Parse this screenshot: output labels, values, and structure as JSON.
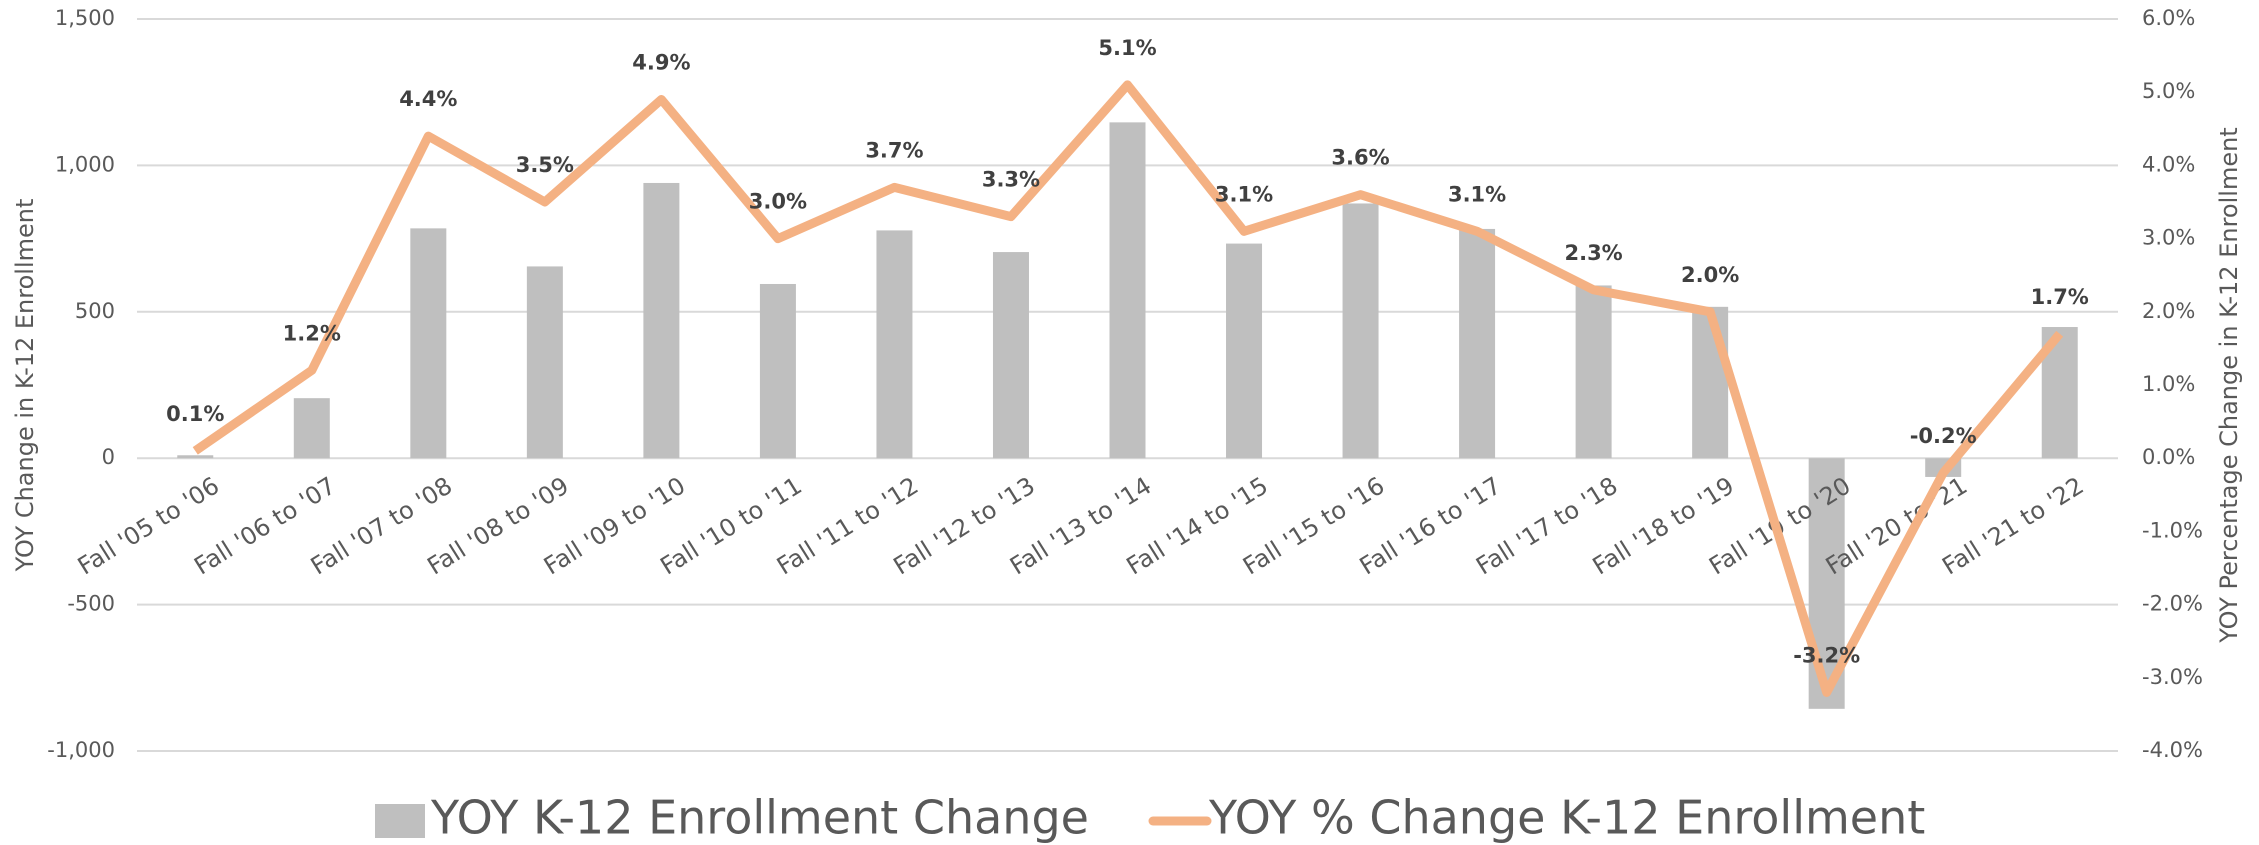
{
  "chart_data": {
    "type": "bar_line",
    "y_label": "YOY Change in K-12 Enrollment",
    "y2_label": "YOY Percentage Change in K-12 Enrollment",
    "categories": [
      "Fall '05 to '06",
      "Fall '06 to '07",
      "Fall '07 to '08",
      "Fall '08 to '09",
      "Fall '09 to '10",
      "Fall '10 to '11",
      "Fall '11 to '12",
      "Fall '12 to '13",
      "Fall '13 to '14",
      "Fall '14 to '15",
      "Fall '15 to '16",
      "Fall '16 to '17",
      "Fall '17 to '18",
      "Fall '18 to '19",
      "Fall '19 to '20",
      "Fall '20 to '21",
      "Fall '21 to '22"
    ],
    "series": [
      {
        "name": "YOY K-12 Enrollment Change",
        "type": "bar",
        "color": "#bfbfbf",
        "values": [
          10,
          205,
          785,
          655,
          940,
          595,
          778,
          704,
          1147,
          733,
          870,
          783,
          590,
          517,
          -856,
          -64,
          448
        ]
      },
      {
        "name": "YOY % Change K-12 Enrollment",
        "type": "line",
        "axis": "y2",
        "color": "#f4b183",
        "values": [
          0.1,
          1.2,
          4.4,
          3.5,
          4.9,
          3.0,
          3.7,
          3.3,
          5.1,
          3.1,
          3.6,
          3.1,
          2.3,
          2.0,
          -3.2,
          -0.2,
          1.7
        ],
        "value_labels": [
          "0.1%",
          "1.2%",
          "4.4%",
          "3.5%",
          "4.9%",
          "3.0%",
          "3.7%",
          "3.3%",
          "5.1%",
          "3.1%",
          "3.6%",
          "3.1%",
          "2.3%",
          "2.0%",
          "-3.2%",
          "-0.2%",
          "1.7%"
        ]
      }
    ],
    "ylim": [
      -1000,
      1500
    ],
    "yticks": [
      {
        "value": -1000,
        "label": "-1,000"
      },
      -500,
      0,
      500,
      {
        "value": 1000,
        "label": "1,000"
      },
      {
        "value": 1500,
        "label": "1,500"
      }
    ],
    "y2lim": [
      -4,
      6
    ],
    "y2ticks": [
      {
        "value": -4,
        "label": "-4.0%"
      },
      {
        "value": -3,
        "label": "-3.0%"
      },
      {
        "value": -2,
        "label": "-2.0%"
      },
      {
        "value": -1,
        "label": "-1.0%"
      },
      {
        "value": 0,
        "label": "0.0%"
      },
      {
        "value": 1,
        "label": "1.0%"
      },
      {
        "value": 2,
        "label": "2.0%"
      },
      {
        "value": 3,
        "label": "3.0%"
      },
      {
        "value": 4,
        "label": "4.0%"
      },
      {
        "value": 5,
        "label": "5.0%"
      },
      {
        "value": 6,
        "label": "6.0%"
      }
    ],
    "grid": true,
    "legend": "bottom"
  }
}
